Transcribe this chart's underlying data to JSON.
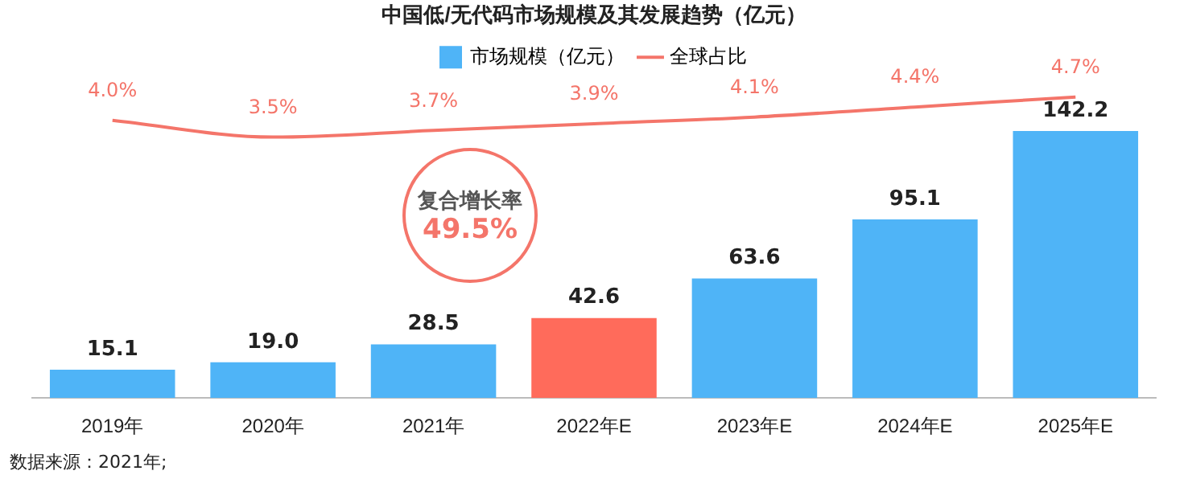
{
  "chart_data": {
    "type": "bar",
    "title": "中国低/无代码市场规模及其发展趋势（亿元）",
    "categories": [
      "2019年",
      "2020年",
      "2021年",
      "2022年E",
      "2023年E",
      "2024年E",
      "2025年E"
    ],
    "series": [
      {
        "name": "市场规模（亿元）",
        "color": "#4fb4f7",
        "colors": [
          "#4fb4f7",
          "#4fb4f7",
          "#4fb4f7",
          "#ff6b5b",
          "#4fb4f7",
          "#4fb4f7",
          "#4fb4f7"
        ],
        "values": [
          15.1,
          19.0,
          28.5,
          42.6,
          63.6,
          95.1,
          142.2
        ],
        "value_labels": [
          "15.1",
          "19.0",
          "28.5",
          "42.6",
          "63.6",
          "95.1",
          "142.2"
        ]
      },
      {
        "name": "全球占比",
        "type": "line",
        "axis": "y2",
        "color": "#f4756a",
        "values": [
          4.0,
          3.5,
          3.7,
          3.9,
          4.1,
          4.4,
          4.7
        ],
        "value_labels": [
          "4.0%",
          "3.5%",
          "3.7%",
          "3.9%",
          "4.1%",
          "4.4%",
          "4.7%"
        ]
      }
    ],
    "legend": "top",
    "marker": "none",
    "annotations": [
      "复合增长率",
      "49.5%",
      "数据来源：2021年;"
    ]
  }
}
